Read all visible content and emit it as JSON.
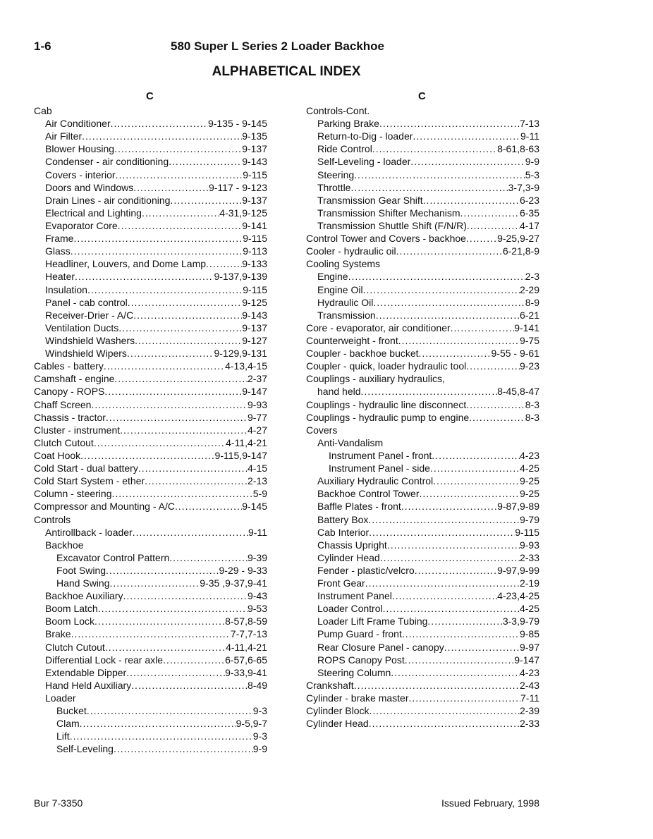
{
  "header": {
    "page_number": "1-6",
    "doc_title": "580 Super L Series 2 Loader Backhoe",
    "index_title": "ALPHABETICAL INDEX"
  },
  "columns": [
    {
      "letter": "C",
      "entries": [
        {
          "t": "Cab",
          "l": 0
        },
        {
          "t": "Air Conditioner",
          "p": "9-135 - 9-145",
          "l": 1
        },
        {
          "t": "Air Filter",
          "p": "9-135",
          "l": 1
        },
        {
          "t": "Blower Housing",
          "p": "9-137",
          "l": 1
        },
        {
          "t": "Condenser - air conditioning",
          "p": "9-143",
          "l": 1
        },
        {
          "t": "Covers - interior",
          "p": "9-115",
          "l": 1
        },
        {
          "t": "Doors and Windows",
          "p": "9-117 - 9-123",
          "l": 1
        },
        {
          "t": "Drain Lines - air conditioning",
          "p": "9-137",
          "l": 1
        },
        {
          "t": "Electrical and Lighting",
          "p": "4-31,9-125",
          "l": 1
        },
        {
          "t": "Evaporator Core",
          "p": "9-141",
          "l": 1
        },
        {
          "t": "Frame",
          "p": "9-115",
          "l": 1
        },
        {
          "t": "Glass",
          "p": "9-113",
          "l": 1
        },
        {
          "t": "Headliner, Louvers, and Dome Lamp",
          "p": "9-133",
          "l": 1
        },
        {
          "t": "Heater",
          "p": "9-137,9-139",
          "l": 1
        },
        {
          "t": "Insulation",
          "p": "9-115",
          "l": 1
        },
        {
          "t": "Panel - cab control",
          "p": "9-125",
          "l": 1
        },
        {
          "t": "Receiver-Drier - A/C",
          "p": "9-143",
          "l": 1
        },
        {
          "t": "Ventilation Ducts",
          "p": "9-137",
          "l": 1
        },
        {
          "t": "Windshield Washers",
          "p": "9-127",
          "l": 1
        },
        {
          "t": "Windshield Wipers",
          "p": "9-129,9-131",
          "l": 1
        },
        {
          "t": "Cables - battery",
          "p": "4-13,4-15",
          "l": 0
        },
        {
          "t": "Camshaft - engine",
          "p": "2-37",
          "l": 0
        },
        {
          "t": "Canopy - ROPS",
          "p": "9-147",
          "l": 0
        },
        {
          "t": "Chaff Screen",
          "p": "9-93",
          "l": 0
        },
        {
          "t": "Chassis - tractor",
          "p": "9-77",
          "l": 0
        },
        {
          "t": "Cluster - instrument",
          "p": "4-27",
          "l": 0
        },
        {
          "t": "Clutch Cutout",
          "p": "4-11,4-21",
          "l": 0
        },
        {
          "t": "Coat Hook",
          "p": "9-115,9-147",
          "l": 0
        },
        {
          "t": "Cold Start - dual battery",
          "p": "4-15",
          "l": 0
        },
        {
          "t": "Cold Start System - ether",
          "p": "2-13",
          "l": 0
        },
        {
          "t": "Column - steering",
          "p": "5-9",
          "l": 0
        },
        {
          "t": "Compressor and Mounting - A/C",
          "p": "9-145",
          "l": 0
        },
        {
          "t": "Controls",
          "l": 0
        },
        {
          "t": "Antirollback - loader",
          "p": "9-11",
          "l": 1
        },
        {
          "t": "Backhoe",
          "l": 1
        },
        {
          "t": "Excavator Control Pattern",
          "p": "9-39",
          "l": 2
        },
        {
          "t": "Foot Swing",
          "p": "9-29 - 9-33",
          "l": 2
        },
        {
          "t": "Hand Swing",
          "p": "9-35 ,9-37,9-41",
          "l": 2
        },
        {
          "t": "Backhoe Auxiliary",
          "p": "9-43",
          "l": 1
        },
        {
          "t": "Boom Latch",
          "p": "9-53",
          "l": 1
        },
        {
          "t": "Boom Lock",
          "p": "8-57,8-59",
          "l": 1
        },
        {
          "t": "Brake",
          "p": "7-7,7-13",
          "l": 1
        },
        {
          "t": "Clutch Cutout",
          "p": "4-11,4-21",
          "l": 1
        },
        {
          "t": "Differential Lock - rear axle",
          "p": "6-57,6-65",
          "l": 1
        },
        {
          "t": "Extendable Dipper",
          "p": "9-33,9-41",
          "l": 1
        },
        {
          "t": "Hand Held Auxiliary",
          "p": "8-49",
          "l": 1
        },
        {
          "t": "Loader",
          "l": 1
        },
        {
          "t": "Bucket",
          "p": "9-3",
          "l": 2
        },
        {
          "t": "Clam",
          "p": "9-5,9-7",
          "l": 2
        },
        {
          "t": "Lift",
          "p": "9-3",
          "l": 2
        },
        {
          "t": "Self-Leveling",
          "p": "9-9",
          "l": 2
        }
      ]
    },
    {
      "letter": "C",
      "entries": [
        {
          "t": "Controls-Cont.",
          "l": 0
        },
        {
          "t": "Parking Brake",
          "p": "7-13",
          "l": 1
        },
        {
          "t": "Return-to-Dig - loader",
          "p": "9-11",
          "l": 1
        },
        {
          "t": "Ride Control",
          "p": "8-61,8-63",
          "l": 1
        },
        {
          "t": "Self-Leveling - loader",
          "p": "9-9",
          "l": 1
        },
        {
          "t": "Steering",
          "p": "5-3",
          "l": 1
        },
        {
          "t": "Throttle",
          "p": "3-7,3-9",
          "l": 1
        },
        {
          "t": "Transmission Gear Shift",
          "p": "6-23",
          "l": 1
        },
        {
          "t": "Transmission Shifter Mechanism",
          "p": "6-35",
          "l": 1
        },
        {
          "t": "Transmission Shuttle Shift (F/N/R)",
          "p": "4-17",
          "l": 1
        },
        {
          "t": "Control Tower and Covers - backhoe",
          "p": "9-25,9-27",
          "l": 0
        },
        {
          "t": "Cooler - hydraulic oil",
          "p": "6-21,8-9",
          "l": 0
        },
        {
          "t": "Cooling Systems",
          "l": 0
        },
        {
          "t": "Engine",
          "p": "2-3",
          "l": 1
        },
        {
          "t": "Engine Oil",
          "p": "2-29",
          "l": 1
        },
        {
          "t": "Hydraulic Oil",
          "p": "8-9",
          "l": 1
        },
        {
          "t": "Transmission",
          "p": "6-21",
          "l": 1
        },
        {
          "t": "Core - evaporator, air conditioner",
          "p": "9-141",
          "l": 0
        },
        {
          "t": "Counterweight - front",
          "p": "9-75",
          "l": 0
        },
        {
          "t": "Coupler - backhoe bucket",
          "p": "9-55 - 9-61",
          "l": 0
        },
        {
          "t": "Coupler - quick, loader hydraulic tool",
          "p": "9-23",
          "l": 0
        },
        {
          "t": "Couplings - auxiliary hydraulics,",
          "l": 0
        },
        {
          "t": "hand held",
          "p": "8-45,8-47",
          "l": 1
        },
        {
          "t": "Couplings - hydraulic line disconnect",
          "p": "8-3",
          "l": 0
        },
        {
          "t": "Couplings - hydraulic pump to engine",
          "p": "8-3",
          "l": 0
        },
        {
          "t": "Covers",
          "l": 0
        },
        {
          "t": "Anti-Vandalism",
          "l": 1
        },
        {
          "t": "Instrument Panel - front",
          "p": "4-23",
          "l": 2
        },
        {
          "t": "Instrument Panel - side",
          "p": "4-25",
          "l": 2
        },
        {
          "t": "Auxiliary Hydraulic Control",
          "p": "9-25",
          "l": 1
        },
        {
          "t": "Backhoe Control Tower",
          "p": "9-25",
          "l": 1
        },
        {
          "t": "Baffle Plates - front",
          "p": "9-87,9-89",
          "l": 1
        },
        {
          "t": "Battery Box",
          "p": "9-79",
          "l": 1
        },
        {
          "t": "Cab Interior",
          "p": "9-115",
          "l": 1
        },
        {
          "t": "Chassis Upright",
          "p": "9-93",
          "l": 1
        },
        {
          "t": "Cylinder Head",
          "p": "2-33",
          "l": 1
        },
        {
          "t": "Fender - plastic/velcro",
          "p": "9-97,9-99",
          "l": 1
        },
        {
          "t": "Front Gear",
          "p": "2-19",
          "l": 1
        },
        {
          "t": "Instrument Panel",
          "p": "4-23,4-25",
          "l": 1
        },
        {
          "t": "Loader Control",
          "p": "4-25",
          "l": 1
        },
        {
          "t": "Loader Lift Frame Tubing",
          "p": "3-3,9-79",
          "l": 1
        },
        {
          "t": "Pump Guard - front",
          "p": "9-85",
          "l": 1
        },
        {
          "t": "Rear Closure Panel - canopy",
          "p": "9-97",
          "l": 1
        },
        {
          "t": "ROPS Canopy Post",
          "p": "9-147",
          "l": 1
        },
        {
          "t": "Steering Column",
          "p": "4-23",
          "l": 1
        },
        {
          "t": "Crankshaft",
          "p": "2-43",
          "l": 0
        },
        {
          "t": "Cylinder - brake master",
          "p": "7-11",
          "l": 0
        },
        {
          "t": "Cylinder Block",
          "p": "2-39",
          "l": 0
        },
        {
          "t": "Cylinder Head",
          "p": "2-33",
          "l": 0
        }
      ]
    }
  ],
  "footer": {
    "left": "Bur 7-3350",
    "right": "Issued February, 1998"
  }
}
